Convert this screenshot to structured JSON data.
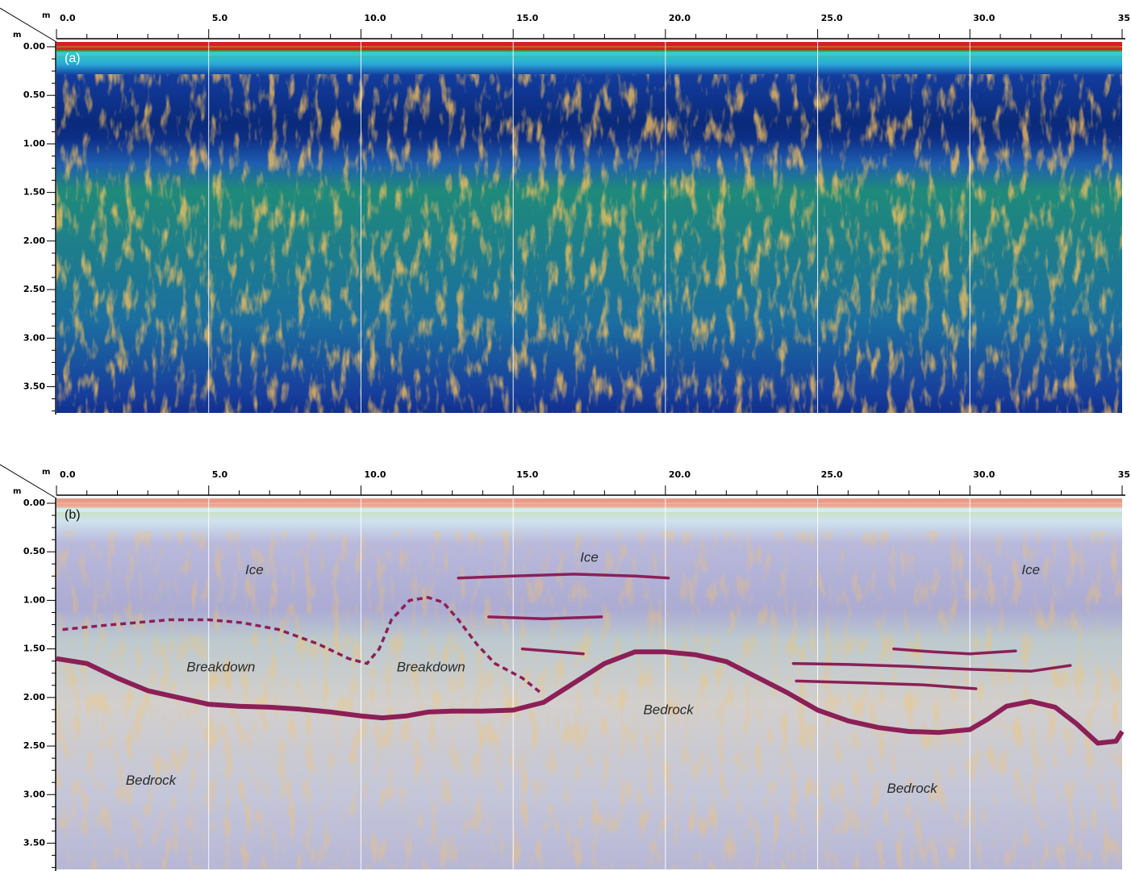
{
  "figure": {
    "panels": [
      {
        "id": "a",
        "tag": "(a)",
        "x_unit": "m",
        "y_unit": "m",
        "x_ticks": [
          "0.0",
          "5.0",
          "10.0",
          "15.0",
          "20.0",
          "25.0",
          "30.0",
          "35"
        ],
        "y_ticks": [
          "0.00",
          "0.50",
          "1.00",
          "1.50",
          "2.00",
          "2.50",
          "3.00",
          "3.50"
        ],
        "style": "radargram"
      },
      {
        "id": "b",
        "tag": "(b)",
        "x_unit": "m",
        "y_unit": "m",
        "x_ticks": [
          "0.0",
          "5.0",
          "10.0",
          "15.0",
          "20.0",
          "25.0",
          "30.0",
          "35"
        ],
        "y_ticks": [
          "0.00",
          "0.50",
          "1.00",
          "1.50",
          "2.00",
          "2.50",
          "3.00",
          "3.50"
        ],
        "style": "interpreted",
        "labels": [
          {
            "text": "Ice",
            "x": 6.5,
            "y": 0.78
          },
          {
            "text": "Ice",
            "x": 17.5,
            "y": 0.65
          },
          {
            "text": "Ice",
            "x": 32.0,
            "y": 0.78
          },
          {
            "text": "Breakdown",
            "x": 5.4,
            "y": 1.78
          },
          {
            "text": "Breakdown",
            "x": 12.3,
            "y": 1.78
          },
          {
            "text": "Bedrock",
            "x": 20.1,
            "y": 2.22
          },
          {
            "text": "Bedrock",
            "x": 3.1,
            "y": 2.95
          },
          {
            "text": "Bedrock",
            "x": 28.1,
            "y": 3.03
          }
        ],
        "bedrock_line": [
          [
            0,
            1.65
          ],
          [
            1,
            1.7
          ],
          [
            2,
            1.85
          ],
          [
            3,
            1.98
          ],
          [
            4,
            2.05
          ],
          [
            5,
            2.12
          ],
          [
            6,
            2.14
          ],
          [
            7,
            2.15
          ],
          [
            8,
            2.17
          ],
          [
            9,
            2.2
          ],
          [
            10,
            2.24
          ],
          [
            10.7,
            2.26
          ],
          [
            11.5,
            2.24
          ],
          [
            12.2,
            2.2
          ],
          [
            13,
            2.19
          ],
          [
            14,
            2.19
          ],
          [
            15,
            2.18
          ],
          [
            16,
            2.1
          ],
          [
            17,
            1.9
          ],
          [
            18,
            1.7
          ],
          [
            19,
            1.58
          ],
          [
            20,
            1.58
          ],
          [
            21,
            1.61
          ],
          [
            22,
            1.68
          ],
          [
            23,
            1.84
          ],
          [
            24,
            2.0
          ],
          [
            25,
            2.18
          ],
          [
            26,
            2.29
          ],
          [
            27,
            2.36
          ],
          [
            28,
            2.4
          ],
          [
            29,
            2.41
          ],
          [
            30,
            2.38
          ],
          [
            30.6,
            2.27
          ],
          [
            31.2,
            2.14
          ],
          [
            32,
            2.09
          ],
          [
            32.8,
            2.15
          ],
          [
            33.5,
            2.32
          ],
          [
            34.2,
            2.52
          ],
          [
            34.8,
            2.5
          ],
          [
            35,
            2.4
          ]
        ],
        "breakdown_line_1": [
          [
            0.2,
            1.35
          ],
          [
            1.5,
            1.31
          ],
          [
            2.6,
            1.28
          ],
          [
            3.7,
            1.25
          ],
          [
            5,
            1.25
          ],
          [
            6.1,
            1.28
          ],
          [
            7.3,
            1.35
          ],
          [
            8.6,
            1.5
          ],
          [
            9.6,
            1.65
          ],
          [
            10.2,
            1.7
          ],
          [
            10.6,
            1.55
          ],
          [
            11,
            1.25
          ],
          [
            11.6,
            1.05
          ],
          [
            12.2,
            1.02
          ],
          [
            12.7,
            1.07
          ],
          [
            13.2,
            1.25
          ],
          [
            13.8,
            1.5
          ],
          [
            14.4,
            1.7
          ],
          [
            15.3,
            1.85
          ],
          [
            15.9,
            2.0
          ]
        ],
        "reflectors": [
          [
            [
              13.2,
              0.82
            ],
            [
              15,
              0.8
            ],
            [
              17,
              0.78
            ],
            [
              19,
              0.8
            ],
            [
              20.1,
              0.82
            ]
          ],
          [
            [
              14.2,
              1.22
            ],
            [
              16,
              1.24
            ],
            [
              17.9,
              1.22
            ]
          ],
          [
            [
              15.3,
              1.55
            ],
            [
              16.5,
              1.58
            ],
            [
              17.3,
              1.6
            ]
          ],
          [
            [
              24.2,
              1.7
            ],
            [
              26,
              1.71
            ],
            [
              28,
              1.73
            ],
            [
              30,
              1.76
            ],
            [
              32,
              1.78
            ],
            [
              33.3,
              1.72
            ]
          ],
          [
            [
              24.3,
              1.88
            ],
            [
              26.5,
              1.9
            ],
            [
              28.5,
              1.92
            ],
            [
              30.2,
              1.96
            ]
          ],
          [
            [
              27.5,
              1.55
            ],
            [
              28.8,
              1.58
            ],
            [
              30,
              1.6
            ],
            [
              31.5,
              1.57
            ]
          ]
        ]
      }
    ]
  }
}
